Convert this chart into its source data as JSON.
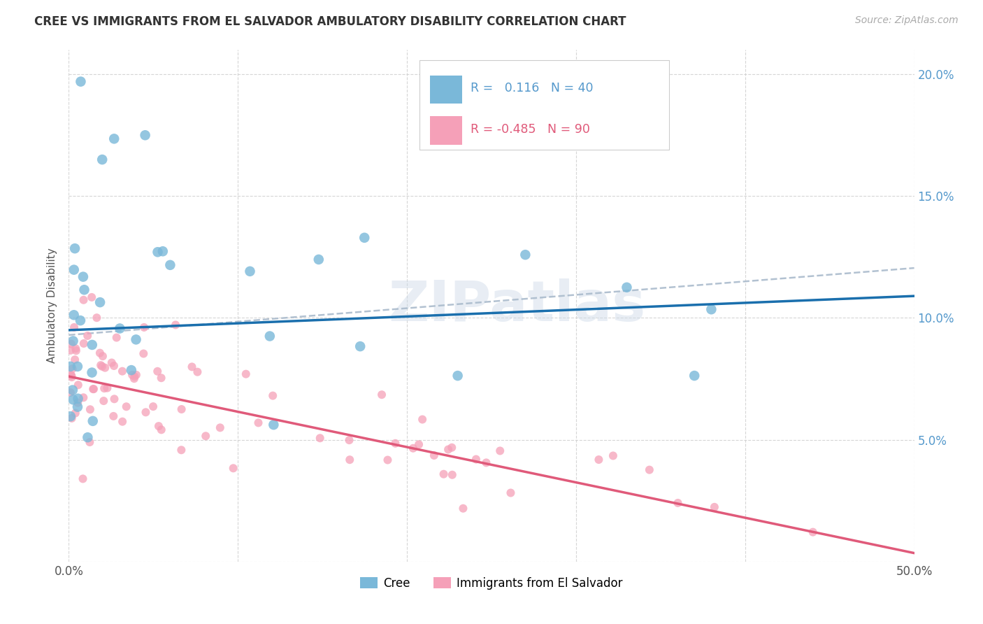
{
  "title": "CREE VS IMMIGRANTS FROM EL SALVADOR AMBULATORY DISABILITY CORRELATION CHART",
  "source": "Source: ZipAtlas.com",
  "ylabel": "Ambulatory Disability",
  "xlim": [
    0.0,
    0.5
  ],
  "ylim": [
    0.0,
    0.21
  ],
  "xticks": [
    0.0,
    0.1,
    0.2,
    0.3,
    0.4,
    0.5
  ],
  "xticklabels": [
    "0.0%",
    "",
    "",
    "",
    "",
    "50.0%"
  ],
  "yticks": [
    0.0,
    0.05,
    0.1,
    0.15,
    0.2
  ],
  "yticklabels_right": [
    "",
    "5.0%",
    "10.0%",
    "15.0%",
    "20.0%"
  ],
  "cree_color": "#7ab8d9",
  "salvador_color": "#f5a0b8",
  "cree_line_color": "#1a6fad",
  "salvador_line_color": "#e05a7a",
  "dashed_color": "#aabbcc",
  "cree_R": 0.116,
  "cree_N": 40,
  "salvador_R": -0.485,
  "salvador_N": 90,
  "legend_label_cree": "Cree",
  "legend_label_salvador": "Immigrants from El Salvador",
  "watermark": "ZIPatlas",
  "bg_color": "#ffffff",
  "title_color": "#333333",
  "source_color": "#aaaaaa",
  "axis_label_color": "#555555",
  "right_tick_color": "#5599cc",
  "grid_color": "#cccccc",
  "cree_line_intercept": 0.095,
  "cree_line_slope": 0.028,
  "salv_line_intercept": 0.076,
  "salv_line_slope": -0.145,
  "dashed_line_intercept": 0.093,
  "dashed_line_slope": 0.055
}
